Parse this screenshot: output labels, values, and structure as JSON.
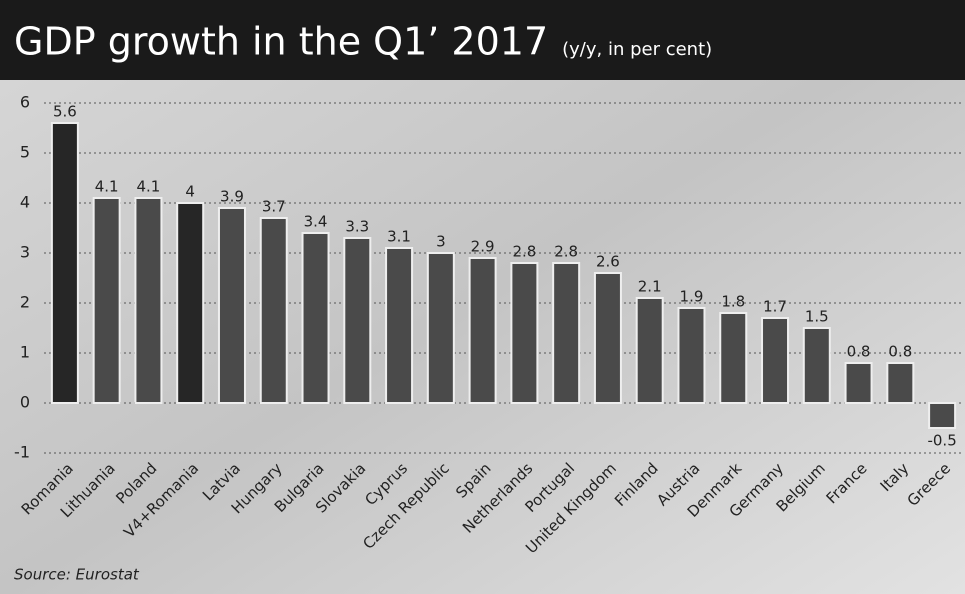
{
  "chart_data": {
    "type": "bar",
    "title": "GDP growth in the Q1’ 2017",
    "subtitle": "(y/y, in per cent)",
    "source": "Source: Eurostat",
    "categories": [
      "Romania",
      "Lithuania",
      "Poland",
      "V4+Romania",
      "Latvia",
      "Hungary",
      "Bulgaria",
      "Slovakia",
      "Cyprus",
      "Czech Republic",
      "Spain",
      "Netherlands",
      "Portugal",
      "United Kingdom",
      "Finland",
      "Austria",
      "Denmark",
      "Germany",
      "Belgium",
      "France",
      "Italy",
      "Greece"
    ],
    "values": [
      5.6,
      4.1,
      4.1,
      4,
      3.9,
      3.7,
      3.4,
      3.3,
      3.1,
      3,
      2.9,
      2.8,
      2.8,
      2.6,
      2.1,
      1.9,
      1.8,
      1.7,
      1.5,
      0.8,
      0.8,
      -0.5
    ],
    "colors": [
      "#262626",
      "#4a4a4a",
      "#4a4a4a",
      "#262626",
      "#4a4a4a",
      "#4a4a4a",
      "#4a4a4a",
      "#4a4a4a",
      "#4a4a4a",
      "#4a4a4a",
      "#4a4a4a",
      "#4a4a4a",
      "#4a4a4a",
      "#4a4a4a",
      "#4a4a4a",
      "#4a4a4a",
      "#4a4a4a",
      "#4a4a4a",
      "#4a4a4a",
      "#4a4a4a",
      "#4a4a4a",
      "#4a4a4a"
    ],
    "ylim": [
      -1,
      6
    ],
    "yticks": [
      -1,
      0,
      1,
      2,
      3,
      4,
      5,
      6
    ],
    "grid": true
  }
}
